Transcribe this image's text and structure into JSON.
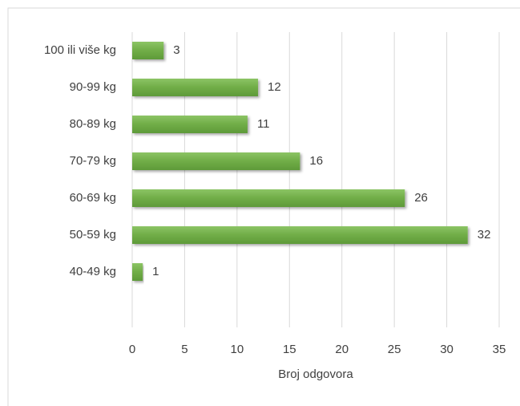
{
  "chart_data": {
    "type": "bar",
    "orientation": "horizontal",
    "x_label": "Broj odgovora",
    "categories": [
      "100 ili više kg",
      "90-99 kg",
      "80-89 kg",
      "70-79 kg",
      "60-69 kg",
      "50-59 kg",
      "40-49 kg",
      null
    ],
    "values": [
      3,
      12,
      11,
      16,
      26,
      32,
      1,
      null
    ],
    "color": "#70ad47",
    "xlim": [
      0,
      35
    ],
    "xticks": [
      0,
      5,
      10,
      15,
      20,
      25,
      30,
      35
    ],
    "grid": true
  }
}
